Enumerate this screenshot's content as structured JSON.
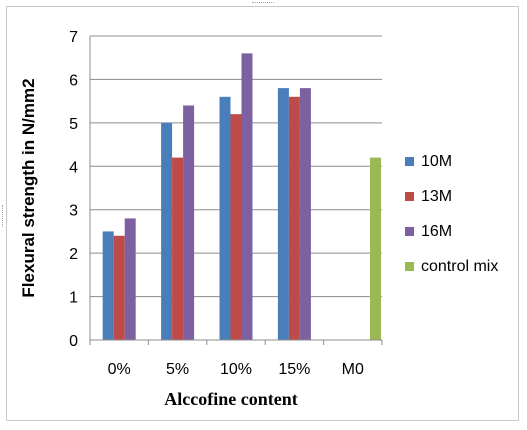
{
  "chart_data": {
    "type": "bar",
    "xlabel": "Alccofine content",
    "ylabel": "Flexural strength in N/mm2",
    "ylim": [
      0,
      7
    ],
    "yticks": [
      "0",
      "1",
      "2",
      "3",
      "4",
      "5",
      "6",
      "7"
    ],
    "grid": true,
    "legend_position": "right",
    "categories": [
      "0%",
      "5%",
      "10%",
      "15%",
      "M0"
    ],
    "series": [
      {
        "name": "10M",
        "color": "#4a7ebb",
        "values": [
          2.5,
          5.0,
          5.6,
          5.8,
          null
        ]
      },
      {
        "name": "13M",
        "color": "#be4b48",
        "values": [
          2.4,
          4.2,
          5.2,
          5.6,
          null
        ]
      },
      {
        "name": "16M",
        "color": "#7d60a0",
        "values": [
          2.8,
          5.4,
          6.6,
          5.8,
          null
        ]
      },
      {
        "name": "control mix",
        "color": "#98b954",
        "values": [
          null,
          null,
          null,
          null,
          4.2
        ]
      }
    ]
  }
}
